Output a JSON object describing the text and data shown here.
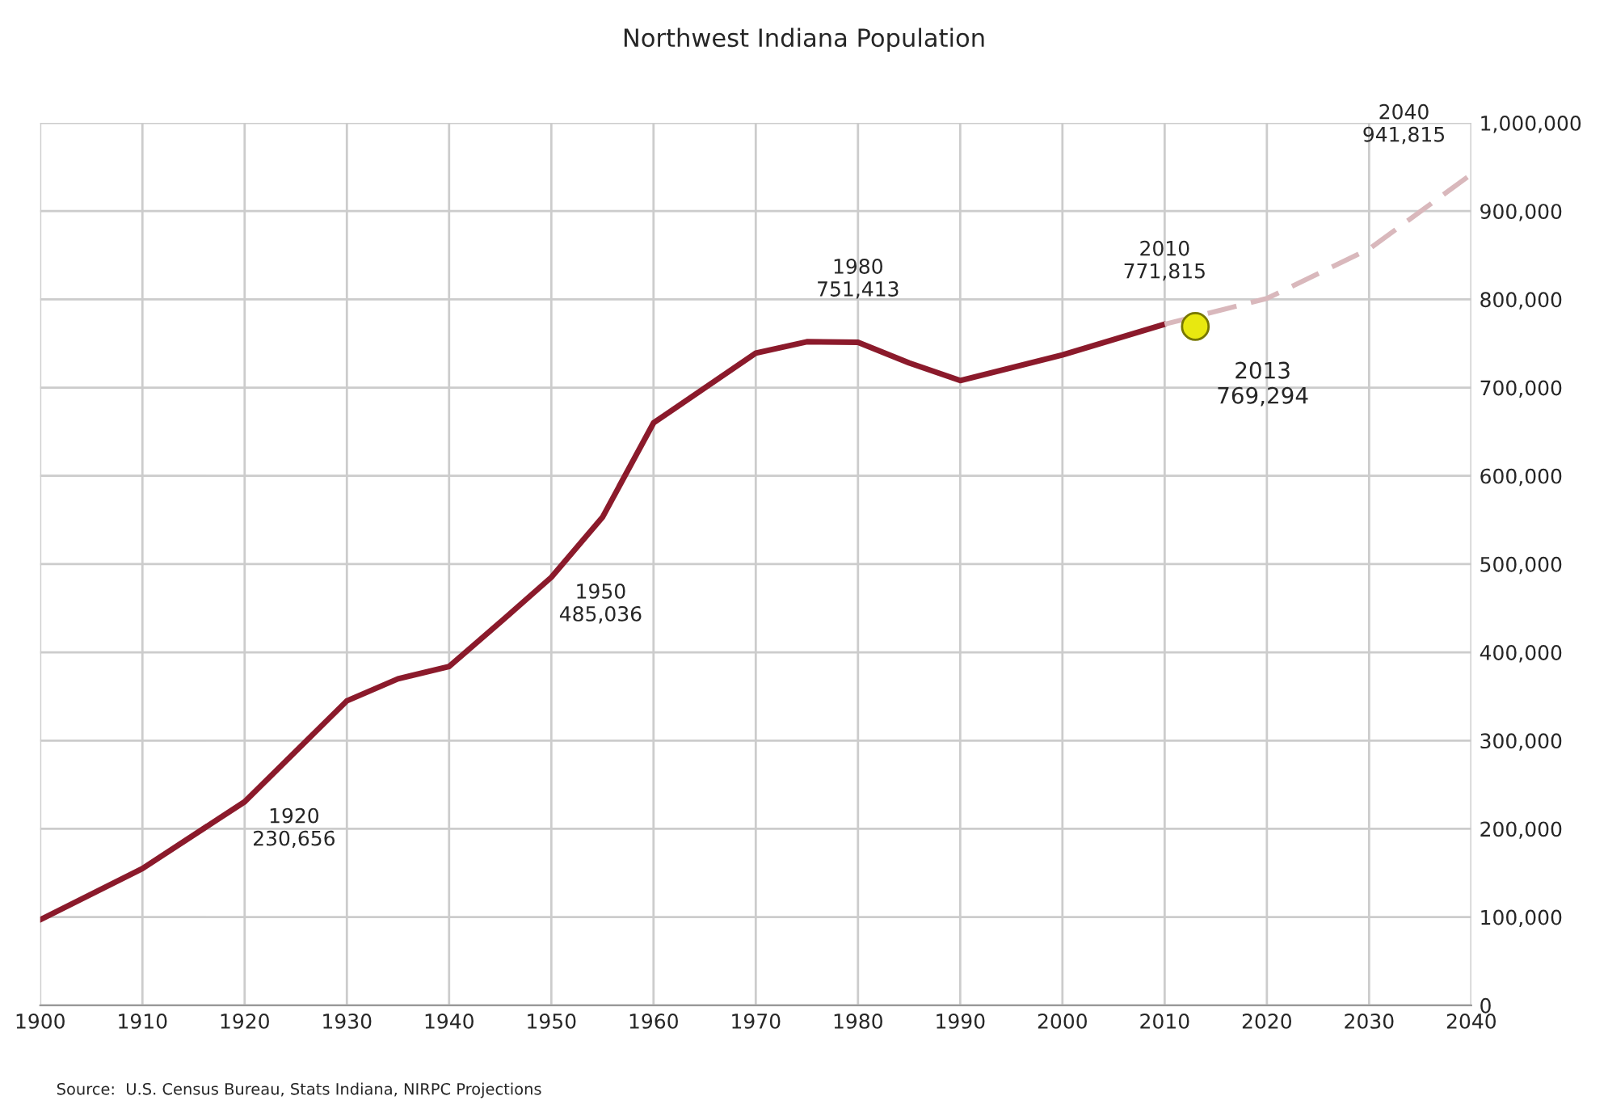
{
  "chart_data": {
    "type": "line",
    "title": "Northwest Indiana Population",
    "xlim": [
      1900,
      2040
    ],
    "xticks": [
      1900,
      1910,
      1920,
      1930,
      1940,
      1950,
      1960,
      1970,
      1980,
      1990,
      2000,
      2010,
      2020,
      2030,
      2040
    ],
    "ylim": [
      0,
      1000000
    ],
    "yticks": [
      {
        "value": 0,
        "label": "0"
      },
      {
        "value": 100000,
        "label": "100,000"
      },
      {
        "value": 200000,
        "label": "200,000"
      },
      {
        "value": 300000,
        "label": "300,000"
      },
      {
        "value": 400000,
        "label": "400,000"
      },
      {
        "value": 500000,
        "label": "500,000"
      },
      {
        "value": 600000,
        "label": "600,000"
      },
      {
        "value": 700000,
        "label": "700,000"
      },
      {
        "value": 800000,
        "label": "800,000"
      },
      {
        "value": 900000,
        "label": "900,000"
      },
      {
        "value": 1000000,
        "label": "1,000,000"
      }
    ],
    "grid": true,
    "legend": false,
    "series": [
      {
        "color": "#8b1a2b",
        "line_style": "solid",
        "x": [
          1900,
          1910,
          1920,
          1930,
          1935,
          1940,
          1945,
          1950,
          1955,
          1960,
          1970,
          1975,
          1980,
          1985,
          1990,
          2000,
          2010
        ],
        "values": [
          97000,
          155000,
          230656,
          345000,
          370000,
          384000,
          434000,
          485036,
          553000,
          660000,
          739000,
          752000,
          751413,
          728000,
          708000,
          737000,
          771815
        ]
      },
      {
        "color": "#d9b8bc",
        "line_style": "dashed",
        "x": [
          2010,
          2020,
          2030,
          2040
        ],
        "values": [
          771815,
          801000,
          857000,
          941815
        ]
      },
      {
        "type": "scatter",
        "color": "#e8e810",
        "marker": "circle",
        "x": [
          2013
        ],
        "values": [
          769294
        ]
      }
    ],
    "annotations": [
      {
        "text": "1920\n230,656",
        "x": 1920,
        "y": 230656
      },
      {
        "text": "1950\n485,036",
        "x": 1950,
        "y": 485036
      },
      {
        "text": "1980\n751,413",
        "x": 1980,
        "y": 751413
      },
      {
        "text": "2010\n771,815",
        "x": 2010,
        "y": 771815
      },
      {
        "text": "2013\n769,294",
        "x": 2013,
        "y": 769294
      },
      {
        "text": "2040\n941,815",
        "x": 2040,
        "y": 941815
      },
      "Source:  U.S. Census Bureau, Stats Indiana, NIRPC Projections"
    ]
  }
}
